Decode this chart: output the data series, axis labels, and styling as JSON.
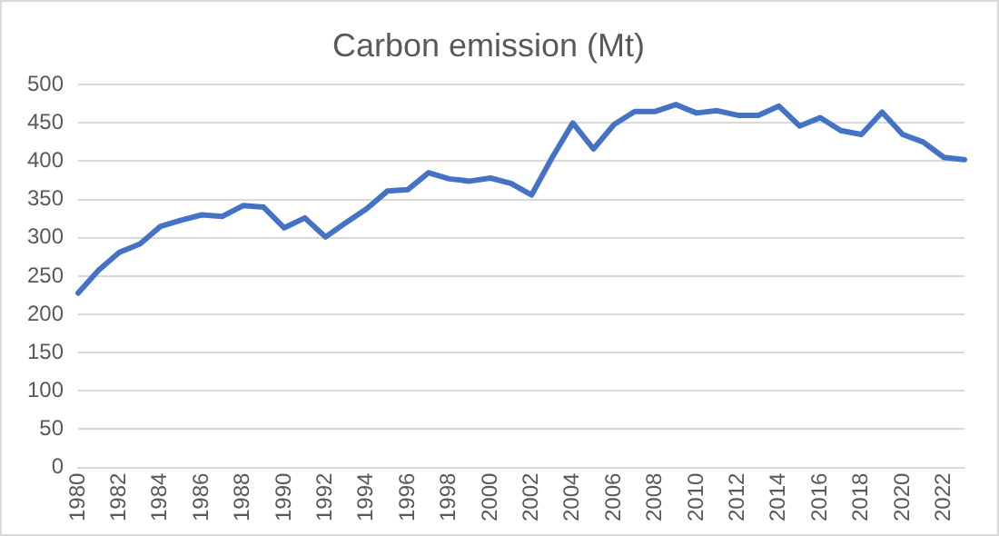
{
  "chart_data": {
    "type": "line",
    "title": "Carbon emission (Mt)",
    "categories": [
      "1980",
      null,
      "1982",
      null,
      "1984",
      null,
      "1986",
      null,
      "1988",
      null,
      "1990",
      null,
      "1992",
      null,
      "1994",
      null,
      "1996",
      null,
      "1998",
      null,
      "2000",
      null,
      "2002",
      null,
      "2004",
      null,
      "2006",
      null,
      "2008",
      null,
      "2010",
      null,
      "2012",
      null,
      "2014",
      null,
      "2016",
      null,
      "2018",
      null,
      "2020",
      null,
      "2022",
      null
    ],
    "series": [
      {
        "color": "#4472c4",
        "values": [
          228,
          258,
          281,
          292,
          315,
          323,
          330,
          328,
          342,
          340,
          313,
          326,
          301,
          320,
          338,
          361,
          363,
          385,
          377,
          374,
          378,
          371,
          356,
          405,
          450,
          416,
          448,
          465,
          465,
          474,
          463,
          466,
          460,
          460,
          472,
          446,
          457,
          440,
          435,
          464,
          435,
          425,
          405,
          402
        ]
      }
    ],
    "ylim": [
      0,
      500
    ],
    "yticks": [
      0,
      50,
      100,
      150,
      200,
      250,
      300,
      350,
      400,
      450,
      500
    ],
    "grid": "y",
    "legend": false,
    "marker": "none",
    "line_style": "solid"
  }
}
